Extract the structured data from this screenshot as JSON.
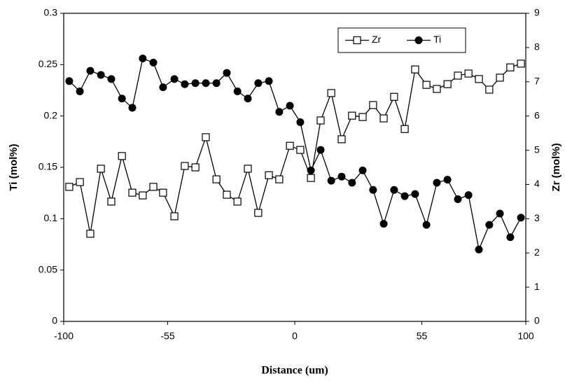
{
  "chart_data": {
    "type": "line",
    "x": [
      -97.6,
      -93.0,
      -88.5,
      -83.9,
      -79.4,
      -74.8,
      -70.3,
      -65.8,
      -61.2,
      -57.0,
      -52.1,
      -47.6,
      -43.0,
      -38.5,
      -33.9,
      -29.4,
      -24.8,
      -20.3,
      -15.8,
      -11.2,
      -6.7,
      -2.1,
      2.4,
      7.0,
      11.2,
      15.8,
      20.3,
      24.8,
      29.4,
      33.9,
      38.5,
      43.0,
      47.6,
      52.1,
      57.0,
      61.5,
      66.1,
      70.6,
      75.2,
      79.7,
      84.2,
      88.8,
      93.3,
      97.9
    ],
    "series": [
      {
        "name": "Zr",
        "color": "#000000",
        "marker": "square",
        "axis": "y2",
        "values": [
          3.93,
          4.07,
          2.56,
          4.46,
          3.5,
          4.83,
          3.76,
          3.68,
          3.93,
          3.76,
          3.07,
          4.54,
          4.5,
          5.38,
          4.15,
          3.7,
          3.5,
          4.46,
          3.17,
          4.27,
          4.15,
          5.13,
          5.01,
          4.19,
          5.87,
          6.67,
          5.32,
          6.01,
          5.97,
          6.32,
          5.93,
          6.56,
          5.62,
          7.36,
          6.91,
          6.79,
          6.93,
          7.18,
          7.24,
          7.08,
          6.77,
          7.12,
          7.42,
          7.53
        ]
      },
      {
        "name": "Ti",
        "color": "#000000",
        "marker": "circle",
        "values": [
          0.234,
          0.224,
          0.244,
          0.24,
          0.236,
          0.217,
          0.208,
          0.256,
          0.252,
          0.228,
          0.236,
          0.231,
          0.232,
          0.232,
          0.232,
          0.242,
          0.224,
          0.217,
          0.232,
          0.234,
          0.204,
          0.21,
          0.194,
          0.147,
          0.167,
          0.137,
          0.141,
          0.135,
          0.147,
          0.128,
          0.095,
          0.128,
          0.122,
          0.124,
          0.094,
          0.135,
          0.138,
          0.119,
          0.123,
          0.07,
          0.094,
          0.105,
          0.082,
          0.101
        ]
      }
    ],
    "xlabel": "Distance (um)",
    "ylabel": "Ti (mol%)",
    "y2label": "Zr (mol%)",
    "xlim": [
      -100,
      100
    ],
    "xticks": [
      -100,
      -55,
      0,
      55,
      100
    ],
    "ylim": [
      0,
      0.3
    ],
    "yticks": [
      0,
      0.05,
      0.1,
      0.15,
      0.2,
      0.25,
      0.3
    ],
    "y2lim": [
      0,
      9
    ],
    "y2ticks": [
      0,
      1,
      2,
      3,
      4,
      5,
      6,
      7,
      8,
      9
    ],
    "grid": false,
    "legend": "upper right"
  }
}
